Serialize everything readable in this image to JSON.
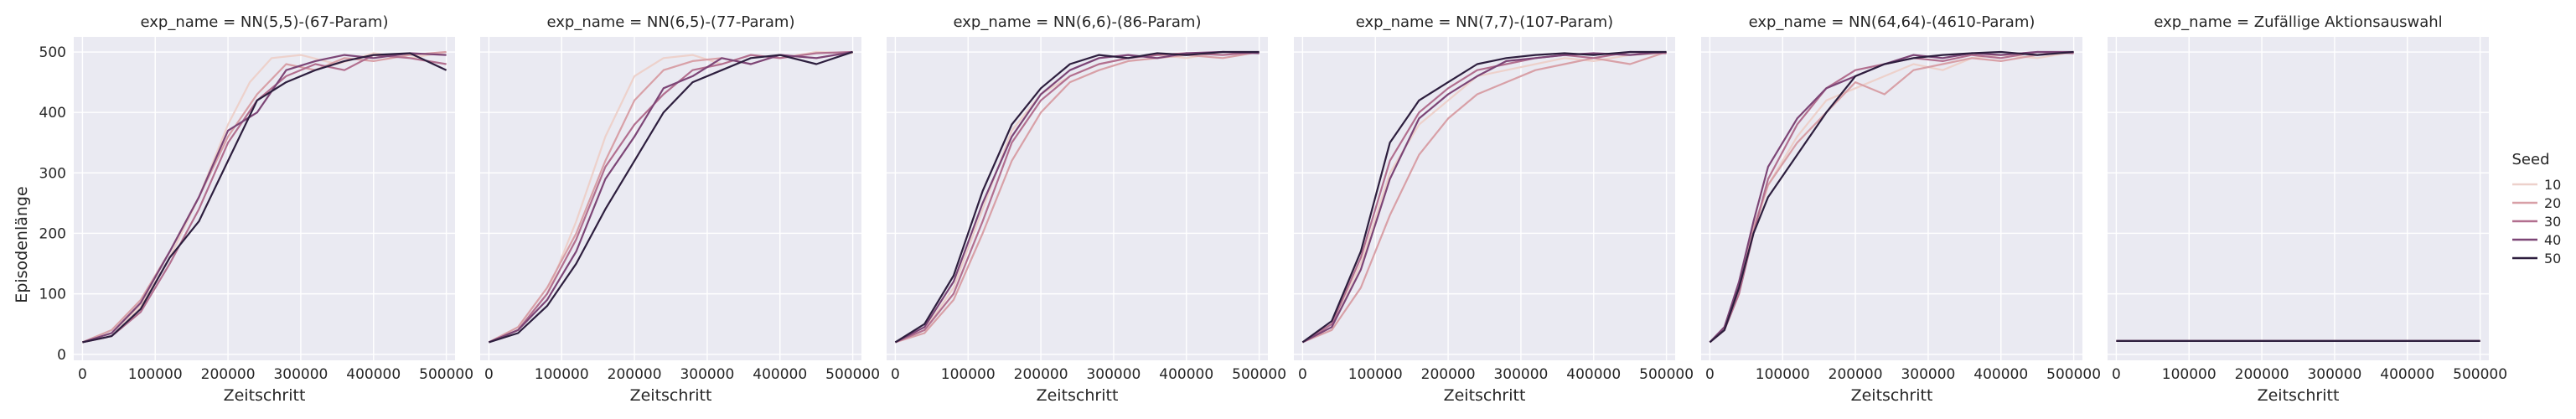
{
  "figure": {
    "ylabel": "Episodenlänge",
    "xlabel": "Zeitschritt"
  },
  "legend": {
    "title": "Seed",
    "placement": "right",
    "entries": [
      {
        "label": "10",
        "color": "#edd1cb"
      },
      {
        "label": "20",
        "color": "#d8a0a7"
      },
      {
        "label": "30",
        "color": "#b26f8f"
      },
      {
        "label": "40",
        "color": "#7c4576"
      },
      {
        "label": "50",
        "color": "#2d1e3e"
      }
    ]
  },
  "chart_data": [
    {
      "type": "line",
      "title": "exp_name = NN(5,5)-(67-Param)",
      "xlabel": "Zeitschritt",
      "ylabel": "Episodenlänge",
      "xlim": [
        -12000,
        512000
      ],
      "ylim": [
        -10,
        525
      ],
      "xticks": [
        0,
        100000,
        200000,
        300000,
        400000,
        500000
      ],
      "yticks": [
        0,
        100,
        200,
        300,
        400,
        500
      ],
      "grid": true,
      "series": [
        {
          "name": "10",
          "x": [
            0,
            40000,
            80000,
            120000,
            160000,
            200000,
            230000,
            260000,
            300000,
            350000,
            400000,
            450000,
            500000
          ],
          "y": [
            20,
            35,
            80,
            160,
            260,
            380,
            450,
            490,
            495,
            480,
            498,
            490,
            500
          ]
        },
        {
          "name": "20",
          "x": [
            0,
            40000,
            80000,
            120000,
            160000,
            200000,
            240000,
            280000,
            320000,
            360000,
            400000,
            450000,
            500000
          ],
          "y": [
            20,
            40,
            90,
            170,
            260,
            360,
            430,
            480,
            470,
            490,
            485,
            495,
            500
          ]
        },
        {
          "name": "30",
          "x": [
            0,
            40000,
            80000,
            120000,
            160000,
            200000,
            240000,
            280000,
            320000,
            360000,
            400000,
            450000,
            500000
          ],
          "y": [
            20,
            30,
            70,
            150,
            240,
            350,
            420,
            460,
            480,
            470,
            495,
            490,
            480
          ]
        },
        {
          "name": "40",
          "x": [
            0,
            40000,
            80000,
            120000,
            160000,
            200000,
            240000,
            280000,
            320000,
            360000,
            400000,
            450000,
            500000
          ],
          "y": [
            20,
            35,
            85,
            170,
            260,
            370,
            400,
            470,
            485,
            495,
            490,
            498,
            495
          ]
        },
        {
          "name": "50",
          "x": [
            0,
            40000,
            80000,
            120000,
            160000,
            200000,
            240000,
            280000,
            320000,
            360000,
            400000,
            450000,
            500000
          ],
          "y": [
            20,
            30,
            75,
            160,
            220,
            320,
            420,
            450,
            470,
            485,
            495,
            498,
            470
          ]
        }
      ]
    },
    {
      "type": "line",
      "title": "exp_name = NN(6,5)-(77-Param)",
      "xlabel": "Zeitschritt",
      "ylabel": "",
      "xlim": [
        -12000,
        512000
      ],
      "ylim": [
        -10,
        525
      ],
      "xticks": [
        0,
        100000,
        200000,
        300000,
        400000,
        500000
      ],
      "yticks": [
        0,
        100,
        200,
        300,
        400,
        500
      ],
      "grid": true,
      "series": [
        {
          "name": "10",
          "x": [
            0,
            40000,
            80000,
            120000,
            160000,
            200000,
            240000,
            280000,
            320000,
            360000,
            400000,
            450000,
            500000
          ],
          "y": [
            20,
            40,
            100,
            220,
            360,
            460,
            490,
            495,
            480,
            495,
            490,
            500,
            498
          ]
        },
        {
          "name": "20",
          "x": [
            0,
            40000,
            80000,
            120000,
            160000,
            200000,
            240000,
            280000,
            320000,
            360000,
            400000,
            450000,
            500000
          ],
          "y": [
            20,
            45,
            110,
            200,
            320,
            420,
            470,
            485,
            490,
            480,
            495,
            490,
            500
          ]
        },
        {
          "name": "30",
          "x": [
            0,
            40000,
            80000,
            120000,
            160000,
            200000,
            240000,
            280000,
            320000,
            360000,
            400000,
            450000,
            500000
          ],
          "y": [
            20,
            40,
            100,
            190,
            310,
            380,
            430,
            470,
            480,
            495,
            490,
            498,
            500
          ]
        },
        {
          "name": "40",
          "x": [
            0,
            40000,
            80000,
            120000,
            160000,
            200000,
            240000,
            280000,
            320000,
            360000,
            400000,
            450000,
            500000
          ],
          "y": [
            20,
            40,
            90,
            170,
            290,
            360,
            440,
            460,
            490,
            480,
            495,
            490,
            500
          ]
        },
        {
          "name": "50",
          "x": [
            0,
            40000,
            80000,
            120000,
            160000,
            200000,
            240000,
            280000,
            320000,
            360000,
            400000,
            450000,
            500000
          ],
          "y": [
            20,
            35,
            80,
            150,
            240,
            320,
            400,
            450,
            470,
            490,
            495,
            480,
            500
          ]
        }
      ]
    },
    {
      "type": "line",
      "title": "exp_name = NN(6,6)-(86-Param)",
      "xlabel": "Zeitschritt",
      "ylabel": "",
      "xlim": [
        -12000,
        512000
      ],
      "ylim": [
        -10,
        525
      ],
      "xticks": [
        0,
        100000,
        200000,
        300000,
        400000,
        500000
      ],
      "yticks": [
        0,
        100,
        200,
        300,
        400,
        500
      ],
      "grid": true,
      "series": [
        {
          "name": "10",
          "x": [
            0,
            40000,
            80000,
            120000,
            160000,
            200000,
            240000,
            280000,
            320000,
            360000,
            400000,
            450000,
            500000
          ],
          "y": [
            20,
            40,
            110,
            240,
            370,
            430,
            460,
            480,
            490,
            495,
            490,
            500,
            498
          ]
        },
        {
          "name": "20",
          "x": [
            0,
            40000,
            80000,
            120000,
            160000,
            200000,
            240000,
            280000,
            320000,
            360000,
            400000,
            450000,
            500000
          ],
          "y": [
            20,
            35,
            90,
            200,
            320,
            400,
            450,
            470,
            485,
            490,
            495,
            490,
            500
          ]
        },
        {
          "name": "30",
          "x": [
            0,
            40000,
            80000,
            120000,
            160000,
            200000,
            240000,
            280000,
            320000,
            360000,
            400000,
            450000,
            500000
          ],
          "y": [
            20,
            40,
            100,
            220,
            350,
            420,
            460,
            480,
            490,
            495,
            498,
            495,
            500
          ]
        },
        {
          "name": "40",
          "x": [
            0,
            40000,
            80000,
            120000,
            160000,
            200000,
            240000,
            280000,
            320000,
            360000,
            400000,
            450000,
            500000
          ],
          "y": [
            20,
            45,
            120,
            250,
            360,
            430,
            470,
            490,
            495,
            490,
            498,
            500,
            498
          ]
        },
        {
          "name": "50",
          "x": [
            0,
            40000,
            80000,
            120000,
            160000,
            200000,
            240000,
            280000,
            320000,
            360000,
            400000,
            450000,
            500000
          ],
          "y": [
            20,
            50,
            130,
            270,
            380,
            440,
            480,
            495,
            490,
            498,
            495,
            500,
            500
          ]
        }
      ]
    },
    {
      "type": "line",
      "title": "exp_name = NN(7,7)-(107-Param)",
      "xlabel": "Zeitschritt",
      "ylabel": "",
      "xlim": [
        -12000,
        512000
      ],
      "ylim": [
        -10,
        525
      ],
      "xticks": [
        0,
        100000,
        200000,
        300000,
        400000,
        500000
      ],
      "yticks": [
        0,
        100,
        200,
        300,
        400,
        500
      ],
      "grid": true,
      "series": [
        {
          "name": "10",
          "x": [
            0,
            40000,
            80000,
            120000,
            160000,
            200000,
            240000,
            280000,
            320000,
            360000,
            400000,
            450000,
            500000
          ],
          "y": [
            20,
            50,
            150,
            300,
            380,
            420,
            460,
            470,
            480,
            490,
            485,
            495,
            498
          ]
        },
        {
          "name": "20",
          "x": [
            0,
            40000,
            80000,
            120000,
            160000,
            200000,
            240000,
            280000,
            320000,
            360000,
            400000,
            450000,
            500000
          ],
          "y": [
            20,
            40,
            110,
            230,
            330,
            390,
            430,
            450,
            470,
            480,
            490,
            480,
            500
          ]
        },
        {
          "name": "30",
          "x": [
            0,
            40000,
            80000,
            120000,
            160000,
            200000,
            240000,
            280000,
            320000,
            360000,
            400000,
            450000,
            500000
          ],
          "y": [
            20,
            50,
            160,
            320,
            400,
            440,
            470,
            480,
            490,
            495,
            490,
            500,
            498
          ]
        },
        {
          "name": "40",
          "x": [
            0,
            40000,
            80000,
            120000,
            160000,
            200000,
            240000,
            280000,
            320000,
            360000,
            400000,
            450000,
            500000
          ],
          "y": [
            20,
            45,
            140,
            290,
            390,
            430,
            460,
            485,
            490,
            495,
            498,
            495,
            500
          ]
        },
        {
          "name": "50",
          "x": [
            0,
            40000,
            80000,
            120000,
            160000,
            200000,
            240000,
            280000,
            320000,
            360000,
            400000,
            450000,
            500000
          ],
          "y": [
            20,
            55,
            170,
            350,
            420,
            450,
            480,
            490,
            495,
            498,
            495,
            500,
            500
          ]
        }
      ]
    },
    {
      "type": "line",
      "title": "exp_name = NN(64,64)-(4610-Param)",
      "xlabel": "Zeitschritt",
      "ylabel": "",
      "xlim": [
        -12000,
        512000
      ],
      "ylim": [
        -10,
        525
      ],
      "xticks": [
        0,
        100000,
        200000,
        300000,
        400000,
        500000
      ],
      "yticks": [
        0,
        100,
        200,
        300,
        400,
        500
      ],
      "grid": true,
      "series": [
        {
          "name": "10",
          "x": [
            0,
            20000,
            40000,
            60000,
            80000,
            120000,
            160000,
            200000,
            240000,
            280000,
            320000,
            360000,
            400000,
            450000,
            500000
          ],
          "y": [
            20,
            40,
            100,
            200,
            280,
            360,
            420,
            440,
            460,
            480,
            470,
            490,
            495,
            490,
            500
          ]
        },
        {
          "name": "20",
          "x": [
            0,
            20000,
            40000,
            60000,
            80000,
            120000,
            160000,
            200000,
            240000,
            280000,
            320000,
            360000,
            400000,
            450000,
            500000
          ],
          "y": [
            20,
            45,
            110,
            210,
            280,
            350,
            400,
            450,
            430,
            470,
            480,
            490,
            485,
            495,
            500
          ]
        },
        {
          "name": "30",
          "x": [
            0,
            20000,
            40000,
            60000,
            80000,
            120000,
            160000,
            200000,
            240000,
            280000,
            320000,
            360000,
            400000,
            450000,
            500000
          ],
          "y": [
            20,
            40,
            100,
            200,
            290,
            380,
            440,
            470,
            480,
            490,
            485,
            495,
            490,
            500,
            498
          ]
        },
        {
          "name": "40",
          "x": [
            0,
            20000,
            40000,
            60000,
            80000,
            120000,
            160000,
            200000,
            240000,
            280000,
            320000,
            360000,
            400000,
            450000,
            500000
          ],
          "y": [
            20,
            45,
            120,
            220,
            310,
            390,
            440,
            460,
            480,
            495,
            490,
            498,
            495,
            500,
            500
          ]
        },
        {
          "name": "50",
          "x": [
            0,
            20000,
            40000,
            60000,
            80000,
            120000,
            160000,
            200000,
            240000,
            280000,
            320000,
            360000,
            400000,
            450000,
            500000
          ],
          "y": [
            20,
            40,
            110,
            200,
            260,
            330,
            400,
            460,
            480,
            490,
            495,
            498,
            500,
            495,
            500
          ]
        }
      ]
    },
    {
      "type": "line",
      "title": "exp_name = Zufällige Aktionsauswahl",
      "xlabel": "Zeitschritt",
      "ylabel": "",
      "xlim": [
        -12000,
        512000
      ],
      "ylim": [
        -10,
        525
      ],
      "xticks": [
        0,
        100000,
        200000,
        300000,
        400000,
        500000
      ],
      "yticks": [
        0,
        100,
        200,
        300,
        400,
        500
      ],
      "grid": true,
      "series": [
        {
          "name": "10",
          "x": [
            0,
            100000,
            200000,
            300000,
            400000,
            500000
          ],
          "y": [
            22,
            22,
            22,
            22,
            22,
            22
          ]
        },
        {
          "name": "20",
          "x": [
            0,
            100000,
            200000,
            300000,
            400000,
            500000
          ],
          "y": [
            22,
            22,
            22,
            22,
            22,
            22
          ]
        },
        {
          "name": "30",
          "x": [
            0,
            100000,
            200000,
            300000,
            400000,
            500000
          ],
          "y": [
            22,
            22,
            22,
            22,
            22,
            22
          ]
        },
        {
          "name": "40",
          "x": [
            0,
            100000,
            200000,
            300000,
            400000,
            500000
          ],
          "y": [
            22,
            22,
            22,
            22,
            22,
            22
          ]
        },
        {
          "name": "50",
          "x": [
            0,
            100000,
            200000,
            300000,
            400000,
            500000
          ],
          "y": [
            22,
            22,
            22,
            22,
            22,
            22
          ]
        }
      ]
    }
  ]
}
